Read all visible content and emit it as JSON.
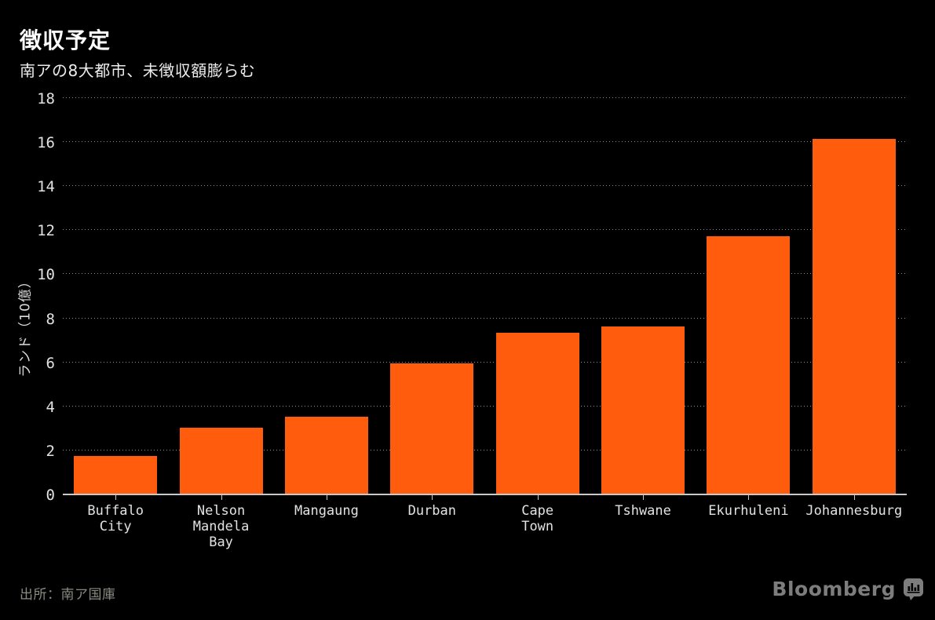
{
  "header": {
    "title": "徴収予定",
    "subtitle": "南アの8大都市、未徴収額膨らむ"
  },
  "footer": {
    "source": "出所：南ア国庫",
    "brand": "Bloomberg"
  },
  "colors": {
    "background": "#000000",
    "bar": "#ff5c0d",
    "gridline": "#909090",
    "baseline": "#c9c9c9",
    "title": "#ffffff",
    "tick_label": "#e2e2e2",
    "source_text": "#8a8a82",
    "brand_gray": "#7d7d7d"
  },
  "chart_data": {
    "type": "bar",
    "title": "徴収予定",
    "subtitle": "南アの8大都市、未徴収額膨らむ",
    "xlabel": "",
    "ylabel": "ランド（10億）",
    "categories": [
      "Buffalo City",
      "Nelson Mandela Bay",
      "Mangaung",
      "Durban",
      "Cape Town",
      "Tshwane",
      "Ekurhuleni",
      "Johannesburg"
    ],
    "category_label_lines": [
      "Buffalo\nCity",
      "Nelson\nMandela\nBay",
      "Mangaung",
      "Durban",
      "Cape\nTown",
      "Tshwane",
      "Ekurhuleni",
      "Johannesburg"
    ],
    "values": [
      1.7,
      3.0,
      3.5,
      5.9,
      7.3,
      7.6,
      11.7,
      16.1
    ],
    "unit": "billion rand",
    "ylim": [
      0,
      18
    ],
    "yticks": [
      0,
      2,
      4,
      6,
      8,
      10,
      12,
      14,
      16,
      18
    ],
    "grid": "horizontal dotted",
    "legend": "none",
    "bar_color": "#ff5c0d",
    "source": "出所：南ア国庫"
  }
}
